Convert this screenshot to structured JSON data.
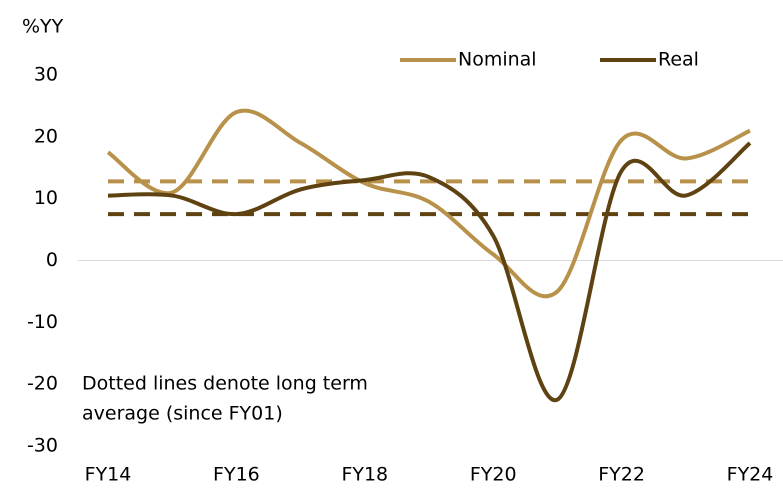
{
  "chart_data": {
    "type": "line",
    "y_label": "%YY",
    "annotation": [
      "Dotted lines denote long term",
      "average (since FY01)"
    ],
    "categories": [
      "FY14",
      null,
      "FY16",
      null,
      "FY18",
      null,
      "FY20",
      null,
      "FY22",
      null,
      "FY24"
    ],
    "series": [
      {
        "name": "Nominal",
        "color": "#b8914a",
        "values": [
          17.5,
          11,
          24,
          19,
          12.5,
          9.5,
          1,
          -5,
          19.5,
          16.5,
          21
        ]
      },
      {
        "name": "Real",
        "color": "#5e4211",
        "values": [
          10.5,
          10.5,
          7.5,
          11.5,
          13,
          13.5,
          4,
          -22.5,
          14.5,
          10.5,
          19
        ]
      }
    ],
    "average_lines": [
      {
        "color": "#b8914a",
        "value": 12.8
      },
      {
        "color": "#5e4211",
        "value": 7.5
      }
    ],
    "ylim": [
      -30,
      30
    ],
    "yticks": [
      -30,
      -20,
      -10,
      0,
      10,
      20,
      30
    ],
    "legend": "top-right"
  }
}
